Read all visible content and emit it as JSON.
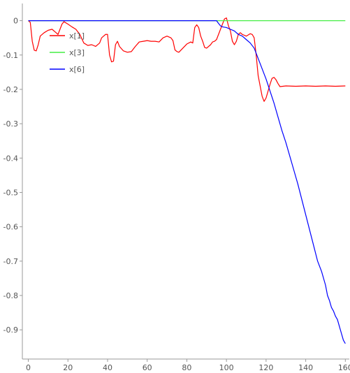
{
  "chart_data": {
    "type": "line",
    "title": "",
    "xlabel": "",
    "ylabel": "",
    "xlim": [
      -3,
      162
    ],
    "ylim": [
      -0.985,
      0.05
    ],
    "grid": false,
    "legend_position": "top-left",
    "x_ticks": [
      0,
      20,
      40,
      60,
      80,
      100,
      120,
      140,
      160
    ],
    "x_tick_labels": [
      "0",
      "20",
      "40",
      "60",
      "80",
      "100",
      "120",
      "140",
      "160"
    ],
    "y_ticks": [
      0,
      -0.1,
      -0.2,
      -0.3,
      -0.4,
      -0.5,
      -0.6,
      -0.7,
      -0.8,
      -0.9
    ],
    "y_tick_labels": [
      "0",
      "-0.1",
      "-0.2",
      "-0.3",
      "-0.4",
      "-0.5",
      "-0.6",
      "-0.7",
      "-0.8",
      "-0.9"
    ],
    "series": [
      {
        "name": "x[1]",
        "color": "#ff0000",
        "points": [
          [
            0,
            0
          ],
          [
            1,
            -0.005
          ],
          [
            2,
            -0.06
          ],
          [
            3,
            -0.086
          ],
          [
            4,
            -0.088
          ],
          [
            5,
            -0.07
          ],
          [
            6,
            -0.045
          ],
          [
            8,
            -0.035
          ],
          [
            10,
            -0.028
          ],
          [
            12,
            -0.025
          ],
          [
            14,
            -0.035
          ],
          [
            15,
            -0.04
          ],
          [
            16,
            -0.025
          ],
          [
            17,
            -0.01
          ],
          [
            18,
            -0.003
          ],
          [
            20,
            -0.01
          ],
          [
            22,
            -0.018
          ],
          [
            24,
            -0.025
          ],
          [
            26,
            -0.04
          ],
          [
            28,
            -0.065
          ],
          [
            30,
            -0.072
          ],
          [
            32,
            -0.07
          ],
          [
            34,
            -0.075
          ],
          [
            36,
            -0.065
          ],
          [
            37,
            -0.05
          ],
          [
            38,
            -0.045
          ],
          [
            39,
            -0.04
          ],
          [
            40,
            -0.04
          ],
          [
            41,
            -0.1
          ],
          [
            42,
            -0.12
          ],
          [
            43,
            -0.118
          ],
          [
            44,
            -0.07
          ],
          [
            45,
            -0.06
          ],
          [
            46,
            -0.075
          ],
          [
            48,
            -0.088
          ],
          [
            50,
            -0.092
          ],
          [
            52,
            -0.09
          ],
          [
            54,
            -0.075
          ],
          [
            56,
            -0.062
          ],
          [
            58,
            -0.06
          ],
          [
            60,
            -0.058
          ],
          [
            62,
            -0.06
          ],
          [
            64,
            -0.06
          ],
          [
            66,
            -0.062
          ],
          [
            68,
            -0.05
          ],
          [
            70,
            -0.045
          ],
          [
            72,
            -0.05
          ],
          [
            73,
            -0.058
          ],
          [
            74,
            -0.085
          ],
          [
            75,
            -0.09
          ],
          [
            76,
            -0.092
          ],
          [
            78,
            -0.08
          ],
          [
            80,
            -0.068
          ],
          [
            82,
            -0.062
          ],
          [
            83,
            -0.065
          ],
          [
            84,
            -0.02
          ],
          [
            85,
            -0.012
          ],
          [
            86,
            -0.02
          ],
          [
            87,
            -0.045
          ],
          [
            88,
            -0.06
          ],
          [
            89,
            -0.078
          ],
          [
            90,
            -0.08
          ],
          [
            92,
            -0.07
          ],
          [
            93,
            -0.062
          ],
          [
            94,
            -0.06
          ],
          [
            95,
            -0.055
          ],
          [
            96,
            -0.04
          ],
          [
            97,
            -0.025
          ],
          [
            98,
            -0.01
          ],
          [
            99,
            0.005
          ],
          [
            100,
            0.008
          ],
          [
            101,
            -0.015
          ],
          [
            102,
            -0.03
          ],
          [
            103,
            -0.06
          ],
          [
            104,
            -0.07
          ],
          [
            105,
            -0.06
          ],
          [
            106,
            -0.04
          ],
          [
            107,
            -0.035
          ],
          [
            108,
            -0.04
          ],
          [
            110,
            -0.045
          ],
          [
            112,
            -0.038
          ],
          [
            113,
            -0.04
          ],
          [
            114,
            -0.05
          ],
          [
            115,
            -0.1
          ],
          [
            116,
            -0.16
          ],
          [
            117,
            -0.19
          ],
          [
            118,
            -0.22
          ],
          [
            119,
            -0.235
          ],
          [
            120,
            -0.225
          ],
          [
            121,
            -0.205
          ],
          [
            122,
            -0.185
          ],
          [
            123,
            -0.168
          ],
          [
            124,
            -0.165
          ],
          [
            125,
            -0.172
          ],
          [
            126,
            -0.183
          ],
          [
            127,
            -0.192
          ],
          [
            130,
            -0.19
          ],
          [
            135,
            -0.191
          ],
          [
            140,
            -0.19
          ],
          [
            145,
            -0.191
          ],
          [
            150,
            -0.19
          ],
          [
            155,
            -0.191
          ],
          [
            160,
            -0.19
          ]
        ]
      },
      {
        "name": "x[3]",
        "color": "#44ee44",
        "points": [
          [
            0,
            0
          ],
          [
            160,
            0
          ]
        ]
      },
      {
        "name": "x[6]",
        "color": "#0000ff",
        "points": [
          [
            0,
            0
          ],
          [
            95,
            0
          ],
          [
            96,
            -0.008
          ],
          [
            97,
            -0.015
          ],
          [
            98,
            -0.018
          ],
          [
            100,
            -0.02
          ],
          [
            102,
            -0.025
          ],
          [
            104,
            -0.03
          ],
          [
            106,
            -0.04
          ],
          [
            108,
            -0.045
          ],
          [
            110,
            -0.055
          ],
          [
            112,
            -0.065
          ],
          [
            114,
            -0.08
          ],
          [
            116,
            -0.11
          ],
          [
            118,
            -0.14
          ],
          [
            120,
            -0.17
          ],
          [
            122,
            -0.205
          ],
          [
            124,
            -0.24
          ],
          [
            126,
            -0.28
          ],
          [
            128,
            -0.32
          ],
          [
            130,
            -0.355
          ],
          [
            132,
            -0.395
          ],
          [
            134,
            -0.435
          ],
          [
            136,
            -0.475
          ],
          [
            138,
            -0.52
          ],
          [
            140,
            -0.565
          ],
          [
            142,
            -0.61
          ],
          [
            144,
            -0.655
          ],
          [
            146,
            -0.7
          ],
          [
            148,
            -0.73
          ],
          [
            150,
            -0.77
          ],
          [
            151,
            -0.8
          ],
          [
            152,
            -0.815
          ],
          [
            153,
            -0.835
          ],
          [
            154,
            -0.845
          ],
          [
            155,
            -0.86
          ],
          [
            156,
            -0.87
          ],
          [
            157,
            -0.89
          ],
          [
            158,
            -0.91
          ],
          [
            159,
            -0.93
          ],
          [
            160,
            -0.94
          ]
        ]
      }
    ]
  }
}
